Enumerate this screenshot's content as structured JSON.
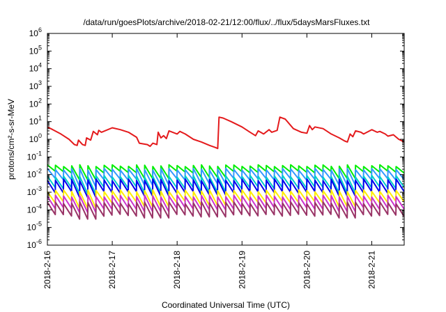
{
  "chart_data": {
    "type": "line",
    "title": "/data/run/goesPlots/archive/2018-02-21/12:00/flux/../flux/5daysMarsFluxes.txt",
    "xlabel": "Coordinated Universal Time (UTC)",
    "ylabel": "protons/cm²-s-sr-MeV",
    "yscale": "log",
    "xlim": [
      "2018-02-16T00:00",
      "2018-02-21T12:00"
    ],
    "ylim": [
      1e-06,
      1000000.0
    ],
    "x_ticks": [
      "2018-2-16",
      "2018-2-17",
      "2018-2-18",
      "2018-2-19",
      "2018-2-20",
      "2018-2-21"
    ],
    "y_ticks": [
      {
        "base": "10",
        "exp": "-6"
      },
      {
        "base": "10",
        "exp": "-5"
      },
      {
        "base": "10",
        "exp": "-4"
      },
      {
        "base": "10",
        "exp": "-3"
      },
      {
        "base": "10",
        "exp": "-2"
      },
      {
        "base": "10",
        "exp": "-1"
      },
      {
        "base": "10",
        "exp": "0"
      },
      {
        "base": "10",
        "exp": "1"
      },
      {
        "base": "10",
        "exp": "2"
      },
      {
        "base": "10",
        "exp": "3"
      },
      {
        "base": "10",
        "exp": "4"
      },
      {
        "base": "10",
        "exp": "5"
      },
      {
        "base": "10",
        "exp": "6"
      }
    ],
    "grid": false,
    "legend": "none",
    "series": [
      {
        "color": "#e41a1c",
        "points": [
          [
            "2018-02-16T00:00",
            5
          ],
          [
            "2018-02-16T02:00",
            3.5
          ],
          [
            "2018-02-16T05:00",
            2
          ],
          [
            "2018-02-16T08:00",
            1
          ],
          [
            "2018-02-16T10:00",
            0.5
          ],
          [
            "2018-02-16T11:00",
            0.45
          ],
          [
            "2018-02-16T11:30",
            0.9
          ],
          [
            "2018-02-16T13:00",
            0.5
          ],
          [
            "2018-02-16T14:00",
            0.45
          ],
          [
            "2018-02-16T14:30",
            1.2
          ],
          [
            "2018-02-16T16:00",
            0.9
          ],
          [
            "2018-02-16T17:00",
            2.8
          ],
          [
            "2018-02-16T18:30",
            1.8
          ],
          [
            "2018-02-16T19:00",
            3.2
          ],
          [
            "2018-02-16T20:00",
            2.5
          ],
          [
            "2018-02-17T00:00",
            4.5
          ],
          [
            "2018-02-17T03:00",
            3.5
          ],
          [
            "2018-02-17T06:00",
            2.5
          ],
          [
            "2018-02-17T09:00",
            1.3
          ],
          [
            "2018-02-17T10:00",
            0.6
          ],
          [
            "2018-02-17T13:00",
            0.5
          ],
          [
            "2018-02-17T14:00",
            0.4
          ],
          [
            "2018-02-17T15:00",
            0.6
          ],
          [
            "2018-02-17T16:30",
            0.5
          ],
          [
            "2018-02-17T17:00",
            2.5
          ],
          [
            "2018-02-17T18:00",
            1.2
          ],
          [
            "2018-02-17T19:00",
            1.6
          ],
          [
            "2018-02-17T20:00",
            1.1
          ],
          [
            "2018-02-17T21:00",
            3
          ],
          [
            "2018-02-18T00:00",
            2
          ],
          [
            "2018-02-18T01:00",
            2.8
          ],
          [
            "2018-02-18T03:00",
            2
          ],
          [
            "2018-02-18T06:00",
            1
          ],
          [
            "2018-02-18T09:00",
            0.7
          ],
          [
            "2018-02-18T12:00",
            0.45
          ],
          [
            "2018-02-18T14:00",
            0.35
          ],
          [
            "2018-02-18T15:00",
            0.3
          ],
          [
            "2018-02-18T15:30",
            18
          ],
          [
            "2018-02-18T17:00",
            16
          ],
          [
            "2018-02-18T20:00",
            10
          ],
          [
            "2018-02-19T00:00",
            5
          ],
          [
            "2018-02-19T03:00",
            2.5
          ],
          [
            "2018-02-19T05:00",
            1.6
          ],
          [
            "2018-02-19T06:00",
            3
          ],
          [
            "2018-02-19T08:00",
            2
          ],
          [
            "2018-02-19T10:00",
            3.5
          ],
          [
            "2018-02-19T11:00",
            2.5
          ],
          [
            "2018-02-19T13:00",
            3.2
          ],
          [
            "2018-02-19T14:00",
            18
          ],
          [
            "2018-02-19T16:00",
            14
          ],
          [
            "2018-02-19T19:00",
            4
          ],
          [
            "2018-02-19T22:00",
            2.5
          ],
          [
            "2018-02-20T00:00",
            2.2
          ],
          [
            "2018-02-20T01:00",
            6
          ],
          [
            "2018-02-20T02:00",
            3.5
          ],
          [
            "2018-02-20T03:00",
            5
          ],
          [
            "2018-02-20T06:00",
            4
          ],
          [
            "2018-02-20T09:00",
            2
          ],
          [
            "2018-02-20T12:00",
            1.2
          ],
          [
            "2018-02-20T14:00",
            0.8
          ],
          [
            "2018-02-20T15:00",
            0.7
          ],
          [
            "2018-02-20T16:00",
            2
          ],
          [
            "2018-02-20T17:00",
            1.4
          ],
          [
            "2018-02-20T18:00",
            3
          ],
          [
            "2018-02-20T20:00",
            2.5
          ],
          [
            "2018-02-20T21:00",
            2
          ],
          [
            "2018-02-21T00:00",
            3.5
          ],
          [
            "2018-02-21T02:00",
            2.5
          ],
          [
            "2018-02-21T03:00",
            2.8
          ],
          [
            "2018-02-21T05:00",
            2
          ],
          [
            "2018-02-21T06:00",
            1.5
          ],
          [
            "2018-02-21T08:00",
            1.8
          ],
          [
            "2018-02-21T10:00",
            1
          ],
          [
            "2018-02-21T12:00",
            0.7
          ]
        ]
      },
      {
        "color": "#00ee00",
        "sawtooth": {
          "peak": 0.032,
          "trough": 0.014,
          "period_hours": 3
        },
        "dips": [
          [
            "2018-02-16T12:00",
            0.005
          ],
          [
            "2018-02-17T13:00",
            0.006
          ],
          [
            "2018-02-18T11:00",
            0.007
          ],
          [
            "2018-02-20T12:00",
            0.006
          ]
        ]
      },
      {
        "color": "#3399ff",
        "sawtooth": {
          "peak": 0.02,
          "trough": 0.0055,
          "period_hours": 3
        },
        "dips": [
          [
            "2018-02-16T12:00",
            0.002
          ],
          [
            "2018-02-17T13:00",
            0.0025
          ],
          [
            "2018-02-18T11:00",
            0.003
          ],
          [
            "2018-02-20T12:00",
            0.0025
          ]
        ]
      },
      {
        "color": "#00cccc",
        "sawtooth": {
          "peak": 0.008,
          "trough": 0.0018,
          "period_hours": 3
        },
        "dips": [
          [
            "2018-02-16T12:00",
            0.0008
          ],
          [
            "2018-02-17T13:00",
            0.0009
          ],
          [
            "2018-02-18T11:00",
            0.001
          ],
          [
            "2018-02-20T12:00",
            0.0009
          ]
        ]
      },
      {
        "color": "#0000ee",
        "sawtooth": {
          "peak": 0.005,
          "trough": 0.001,
          "period_hours": 3
        },
        "dips": [
          [
            "2018-02-16T12:00",
            0.0005
          ],
          [
            "2018-02-17T13:00",
            0.0006
          ],
          [
            "2018-02-18T11:00",
            0.0007
          ],
          [
            "2018-02-20T12:00",
            0.0006
          ]
        ]
      },
      {
        "color": "#ffee00",
        "sawtooth": {
          "peak": 0.0012,
          "trough": 0.00028,
          "period_hours": 3
        },
        "dips": [
          [
            "2018-02-16T12:00",
            0.00012
          ],
          [
            "2018-02-17T13:00",
            0.00015
          ],
          [
            "2018-02-18T11:00",
            0.00018
          ],
          [
            "2018-02-20T12:00",
            0.00015
          ]
        ]
      },
      {
        "color": "#cc33cc",
        "sawtooth": {
          "peak": 0.0006,
          "trough": 0.00012,
          "period_hours": 3
        },
        "dips": [
          [
            "2018-02-16T12:00",
            7e-05
          ],
          [
            "2018-02-17T13:00",
            8e-05
          ],
          [
            "2018-02-18T11:00",
            0.0001
          ],
          [
            "2018-02-20T12:00",
            8e-05
          ]
        ]
      },
      {
        "color": "#993366",
        "sawtooth": {
          "peak": 0.00025,
          "trough": 5e-05,
          "period_hours": 3
        },
        "dips": [
          [
            "2018-02-16T12:00",
            3e-05
          ],
          [
            "2018-02-17T13:00",
            3.5e-05
          ],
          [
            "2018-02-18T11:00",
            4e-05
          ],
          [
            "2018-02-20T12:00",
            3.5e-05
          ]
        ]
      }
    ]
  }
}
